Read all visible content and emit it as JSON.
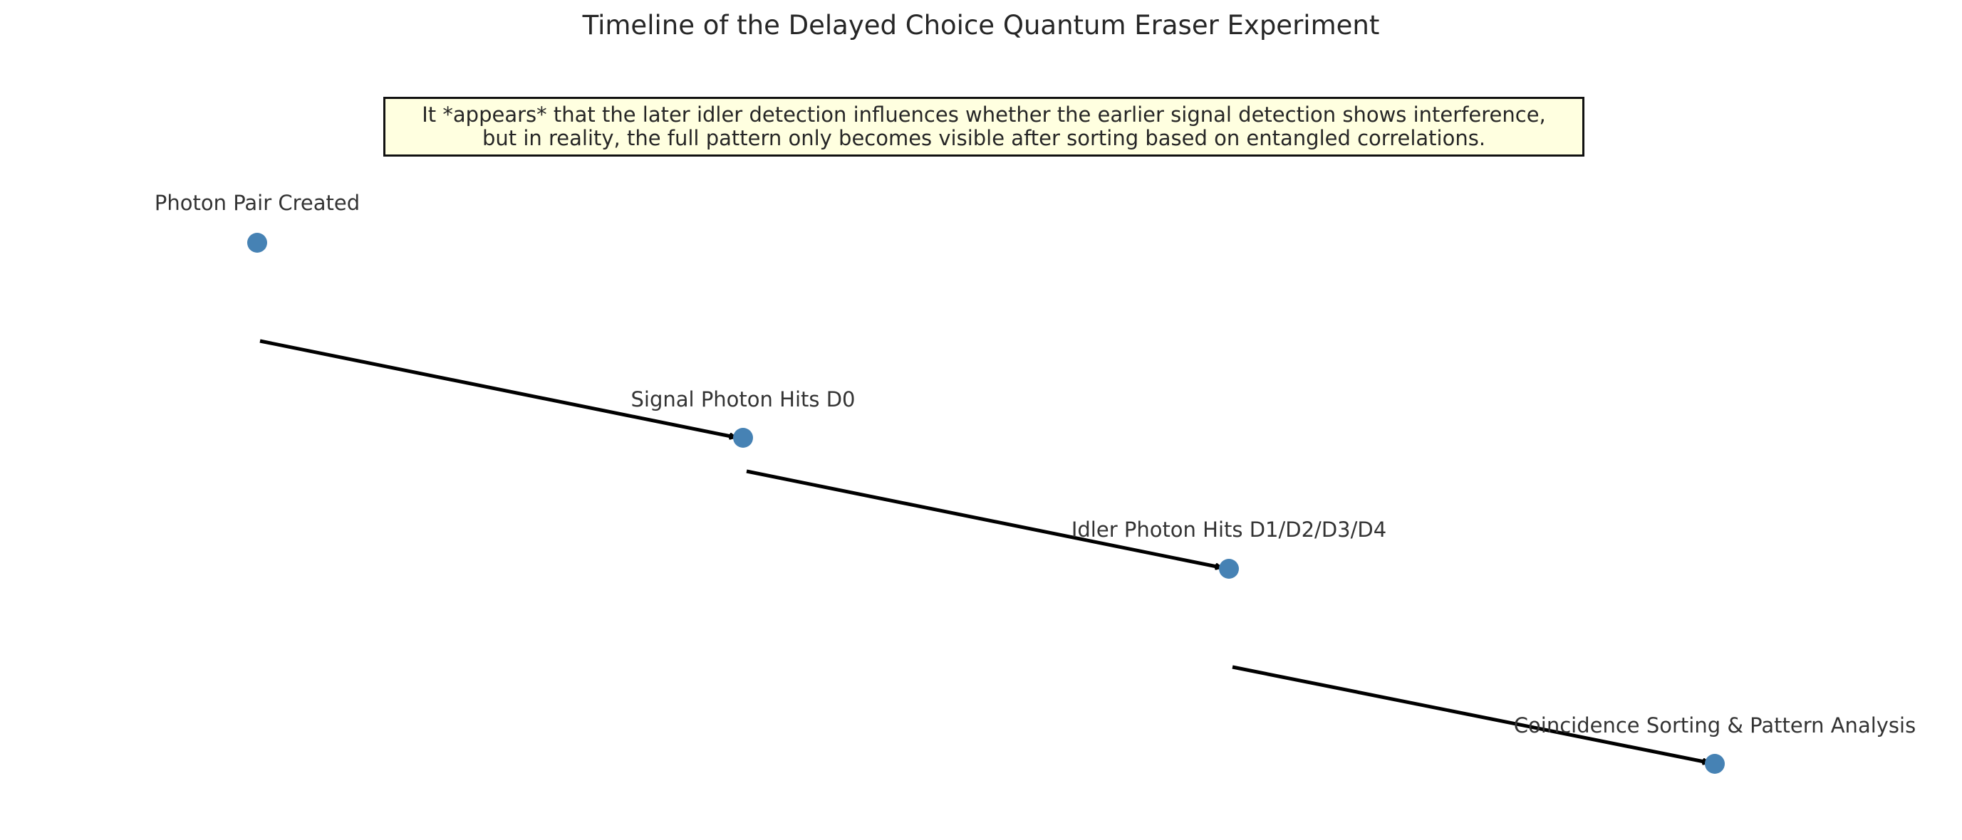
{
  "title": "Timeline of the Delayed Choice Quantum Eraser Experiment",
  "note": {
    "lines": [
      "It *appears* that the later idler detection influences whether the earlier signal detection shows interference,",
      "but in reality, the full pattern only becomes visible after sorting based on entangled correlations."
    ]
  },
  "events": [
    {
      "label": "Photon Pair Created"
    },
    {
      "label": "Signal Photon Hits D0"
    },
    {
      "label": "Idler Photon Hits D1/D2/D3/D4"
    },
    {
      "label": "Coincidence Sorting & Pattern Analysis"
    }
  ],
  "colors": {
    "marker": "#4682b4",
    "arrow": "#000000",
    "note_background": "#ffffe0"
  }
}
